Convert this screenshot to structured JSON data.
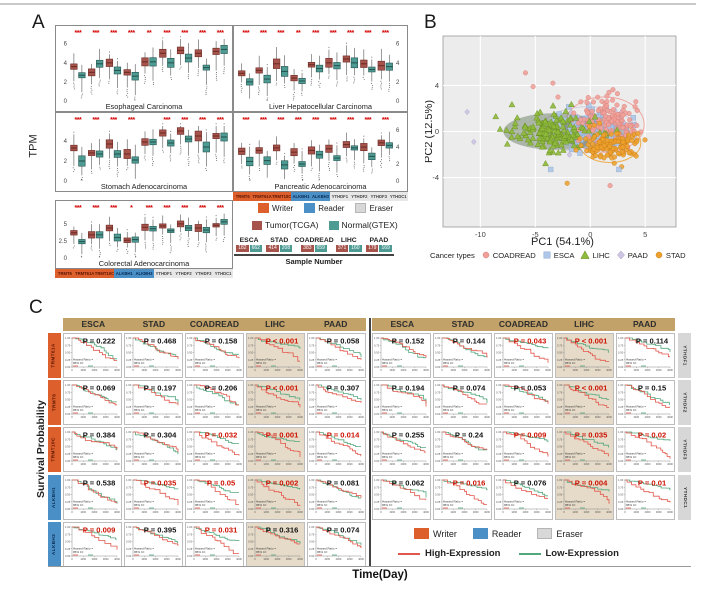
{
  "panels": {
    "a": {
      "label": "A"
    },
    "b": {
      "label": "B"
    },
    "c": {
      "label": "C"
    }
  },
  "colors": {
    "tumor": "#A6534B",
    "tumor_dark": "#6E2C26",
    "normal": "#4E9B94",
    "normal_dark": "#25544F",
    "writer": "#DD5F2B",
    "reader": "#4A90C6",
    "eraser": "#D8D8D8",
    "sig_star": "#D40000",
    "high_expression": "#E2574C",
    "low_expression": "#53A77D",
    "header_tan": "#C2A269",
    "lihc_bg": "#E6DBC8",
    "coadread": "#F0A099",
    "esca": "#AEC6E8",
    "lihc": "#8FBB3C",
    "paad": "#CDC5E2",
    "stad": "#EFA12E"
  },
  "chart_data": {
    "boxplots": {
      "type": "box",
      "ylabel": "TPM",
      "genes": [
        "TRMT6",
        "TRMT61A",
        "TRMT10C",
        "ALKBH1",
        "ALKBH3",
        "YTHDF1",
        "YTHDF2",
        "YTHDF3",
        "YTHDC1"
      ],
      "gene_classes": [
        "writer",
        "writer",
        "writer",
        "reader",
        "reader",
        "eraser",
        "eraser",
        "eraser",
        "eraser"
      ],
      "class_legend": [
        {
          "label": "Writer",
          "key": "writer"
        },
        {
          "label": "Reader",
          "key": "reader"
        },
        {
          "label": "Eraser",
          "key": "eraser"
        }
      ],
      "series_legend": [
        {
          "label": "Tumor(TCGA)",
          "key": "tumor"
        },
        {
          "label": "Normal(GTEX)",
          "key": "normal"
        }
      ],
      "sample_table": {
        "caption": "Sample Number",
        "columns": [
          "ESCA",
          "STAD",
          "COADREAD",
          "LIHC",
          "PAAD"
        ],
        "tumor_counts": [
          "182",
          "414",
          "383",
          "371",
          "179"
        ],
        "normal_counts": [
          "662",
          "208",
          "659",
          "160",
          "169"
        ]
      },
      "panels": [
        {
          "title": "Esophageal Carcinoma",
          "ylim": [
            0,
            6.6
          ],
          "yticks": [
            0,
            2,
            4,
            6
          ],
          "tick_side": "left",
          "tumor": [
            3.6,
            3.0,
            4.0,
            3.0,
            4.1,
            5.0,
            5.3,
            5.0,
            5.2
          ],
          "normal": [
            2.7,
            3.9,
            3.2,
            2.6,
            4.1,
            4.0,
            4.5,
            3.5,
            5.4
          ],
          "sig": [
            "***",
            "***",
            "***",
            "***",
            "**",
            "***",
            "***",
            "***",
            "***"
          ]
        },
        {
          "title": "Liver Hepatocellular Carcinoma",
          "ylim": [
            0,
            6.6
          ],
          "yticks": [
            0,
            2,
            4,
            6
          ],
          "tick_side": "right",
          "tumor": [
            2.9,
            3.2,
            3.9,
            2.4,
            3.8,
            4.0,
            4.4,
            3.9,
            3.7
          ],
          "normal": [
            2.0,
            2.3,
            3.1,
            2.1,
            3.4,
            3.7,
            4.0,
            3.3,
            3.6
          ],
          "sig": [
            "***",
            "***",
            "***",
            "**",
            "***",
            "***",
            "***",
            "***",
            "***"
          ]
        },
        {
          "title": "Stomach Adenocarcinoma",
          "ylim": [
            0,
            5.6
          ],
          "yticks": [
            0,
            2,
            4
          ],
          "tick_side": "left",
          "tumor": [
            3.3,
            2.8,
            3.7,
            2.7,
            3.9,
            4.8,
            5.0,
            4.5,
            4.5
          ],
          "normal": [
            2.0,
            2.7,
            2.7,
            2.1,
            3.9,
            3.8,
            4.2,
            3.4,
            4.4
          ],
          "sig": [
            "***",
            "***",
            "***",
            "***",
            "",
            "***",
            "***",
            "***",
            "***"
          ]
        },
        {
          "title": "Pancreatic Adenocarcinoma",
          "ylim": [
            0,
            6.6
          ],
          "yticks": [
            0,
            2,
            4,
            6
          ],
          "tick_side": "right",
          "tumor": [
            3.5,
            3.6,
            3.9,
            3.4,
            3.6,
            3.8,
            4.3,
            4.0,
            4.5
          ],
          "normal": [
            2.3,
            2.4,
            1.9,
            2.0,
            3.1,
            2.7,
            3.9,
            2.9,
            4.2
          ],
          "sig": [
            "***",
            "***",
            "***",
            "***",
            "***",
            "***",
            "***",
            "***",
            "***"
          ]
        },
        {
          "title": "Colorectal Adenocarcinoma",
          "ylim": [
            0,
            6.6
          ],
          "yticks": [
            0,
            2.5,
            5
          ],
          "tick_side": "left",
          "tumor": [
            3.7,
            3.4,
            4.4,
            2.6,
            4.5,
            4.7,
            5.0,
            4.4,
            4.8
          ],
          "normal": [
            2.4,
            3.4,
            3.0,
            2.7,
            4.3,
            4.0,
            4.4,
            4.1,
            5.3
          ],
          "sig": [
            "***",
            "***",
            "***",
            "*",
            "***",
            "***",
            "***",
            "***",
            "***"
          ]
        }
      ]
    },
    "pca": {
      "type": "scatter",
      "xlabel": "PC1 (54.1%)",
      "ylabel": "PC2 (12.5%)",
      "legend_title": "Cancer types",
      "xticks": [
        -10,
        -5,
        0,
        5
      ],
      "yticks": [
        -4,
        0,
        4
      ],
      "xlim": [
        -13.4,
        7.8
      ],
      "ylim": [
        -8.3,
        8.3
      ],
      "groups": [
        {
          "name": "COADREAD",
          "marker": "circle",
          "color": "#F0A099",
          "edge": "#d97e77",
          "center": [
            1.6,
            0.9
          ],
          "sx": 1.6,
          "sy": 1.1,
          "n": 150
        },
        {
          "name": "ESCA",
          "marker": "square",
          "color": "#AEC6E8",
          "edge": "#8aa9cf",
          "center": [
            0.3,
            0.0
          ],
          "sx": 1.6,
          "sy": 0.8,
          "n": 100
        },
        {
          "name": "LIHC",
          "marker": "triangle",
          "color": "#8FBB3C",
          "edge": "#6a8f23",
          "center": [
            -3.3,
            0.0
          ],
          "sx": 1.9,
          "sy": 0.9,
          "n": 160
        },
        {
          "name": "PAAD",
          "marker": "diamond",
          "color": "#CDC5E2",
          "edge": "#a99cc9",
          "center": [
            0.2,
            0.2
          ],
          "sx": 1.8,
          "sy": 0.8,
          "n": 80
        },
        {
          "name": "STAD",
          "marker": "circle",
          "color": "#EFA12E",
          "edge": "#c77f14",
          "center": [
            1.7,
            -1.2
          ],
          "sx": 1.3,
          "sy": 0.7,
          "n": 120
        }
      ],
      "outliers": [
        {
          "group": "PAAD",
          "x": -11.2,
          "y": 1.7
        },
        {
          "group": "PAAD",
          "x": -10.6,
          "y": -0.9
        },
        {
          "group": "LIHC",
          "x": -8.6,
          "y": 1.3
        },
        {
          "group": "LIHC",
          "x": -8.2,
          "y": 0.2
        },
        {
          "group": "STAD",
          "x": -2.1,
          "y": -4.5
        },
        {
          "group": "COADREAD",
          "x": 1.8,
          "y": -4.7
        },
        {
          "group": "ESCA",
          "x": -3.6,
          "y": -3.3
        },
        {
          "group": "ESCA",
          "x": 2.6,
          "y": -3.3
        },
        {
          "group": "COADREAD",
          "x": -5.9,
          "y": 5.1
        },
        {
          "group": "COADREAD",
          "x": -5.2,
          "y": 3.9
        },
        {
          "group": "COADREAD",
          "x": -3.4,
          "y": 4.2
        },
        {
          "group": "COADREAD",
          "x": 1.7,
          "y": 3.4
        }
      ]
    },
    "survival": {
      "type": "line",
      "xlabel": "Time(Day)",
      "ylabel": "Survival Probability",
      "columns": [
        "ESCA",
        "STAD",
        "COADREAD",
        "LIHC",
        "PAAD"
      ],
      "highlight_column": "LIHC",
      "ytick_labels": [
        "1.00",
        "0.75",
        "0.50",
        "0.25",
        "0.00"
      ],
      "xtick_labels": [
        "0",
        "1000",
        "2000",
        "3000",
        "4000"
      ],
      "stats_labels": {
        "hr": "Hazard Ratio =",
        "ci": "95% CI:"
      },
      "legend_lines": [
        {
          "label": "High-Expression",
          "key": "high_expression"
        },
        {
          "label": "Low-Expression",
          "key": "low_expression"
        }
      ],
      "left_rows": [
        {
          "gene": "TRMT61A",
          "class": "writer",
          "p": [
            "P = 0.222",
            "P = 0.468",
            "P = 0.158",
            "P < 0.001",
            "P = 0.058"
          ],
          "sig": [
            false,
            false,
            false,
            true,
            false
          ]
        },
        {
          "gene": "TRMT6",
          "class": "writer",
          "p": [
            "P = 0.069",
            "P = 0.197",
            "P = 0.206",
            "P < 0.001",
            "P = 0.307"
          ],
          "sig": [
            false,
            false,
            false,
            true,
            false
          ]
        },
        {
          "gene": "TRMT10C",
          "class": "writer",
          "p": [
            "P = 0.384",
            "P = 0.304",
            "P = 0.032",
            "P = 0.001",
            "P = 0.014"
          ],
          "sig": [
            false,
            false,
            true,
            true,
            true
          ]
        },
        {
          "gene": "ALKBH1",
          "class": "reader",
          "p": [
            "P = 0.538",
            "P = 0.035",
            "P = 0.05",
            "P = 0.002",
            "P = 0.081"
          ],
          "sig": [
            false,
            true,
            true,
            true,
            false
          ]
        },
        {
          "gene": "ALKBH3",
          "class": "reader",
          "p": [
            "P = 0.009",
            "P = 0.395",
            "P = 0.031",
            "P = 0.316",
            "P = 0.074"
          ],
          "sig": [
            true,
            false,
            true,
            false,
            false
          ]
        }
      ],
      "right_rows": [
        {
          "gene": "YTHDF1",
          "class": "eraser",
          "p": [
            "P = 0.152",
            "P = 0.144",
            "P = 0.043",
            "P < 0.001",
            "P = 0.114"
          ],
          "sig": [
            false,
            false,
            true,
            true,
            false
          ]
        },
        {
          "gene": "YTHDF2",
          "class": "eraser",
          "p": [
            "P = 0.194",
            "P = 0.074",
            "P = 0.053",
            "P < 0.001",
            "P = 0.15"
          ],
          "sig": [
            false,
            false,
            false,
            true,
            false
          ]
        },
        {
          "gene": "YTHDF3",
          "class": "eraser",
          "p": [
            "P = 0.255",
            "P = 0.24",
            "P = 0.009",
            "P = 0.035",
            "P = 0.02"
          ],
          "sig": [
            false,
            false,
            true,
            true,
            true
          ]
        },
        {
          "gene": "YTHDC1",
          "class": "eraser",
          "p": [
            "P = 0.062",
            "P = 0.016",
            "P = 0.076",
            "P = 0.004",
            "P = 0.01"
          ],
          "sig": [
            false,
            true,
            false,
            true,
            true
          ]
        }
      ]
    }
  }
}
